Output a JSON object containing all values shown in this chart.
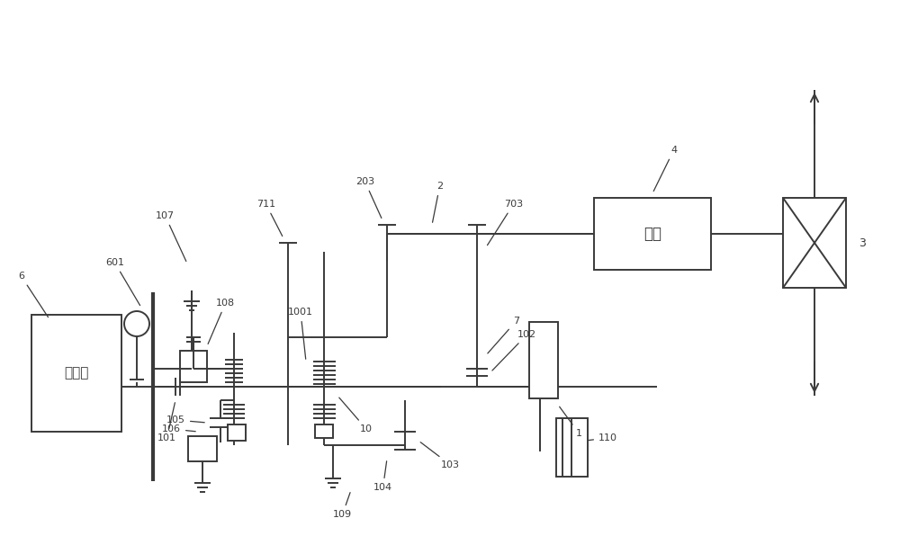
{
  "bg": "#ffffff",
  "lc": "#3a3a3a",
  "figsize": [
    10.0,
    5.96
  ],
  "dpi": 100
}
